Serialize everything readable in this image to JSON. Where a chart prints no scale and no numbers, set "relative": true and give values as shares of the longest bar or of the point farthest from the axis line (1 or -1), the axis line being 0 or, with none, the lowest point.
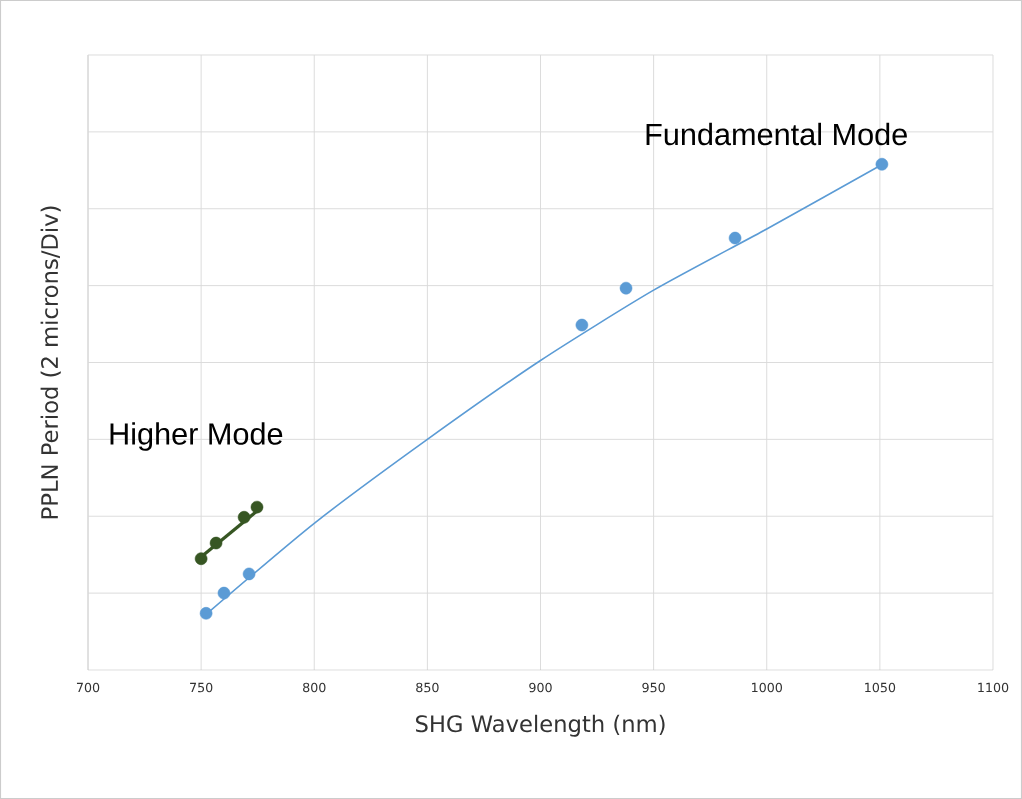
{
  "chart_data": {
    "type": "scatter",
    "relative": true,
    "xlabel": "SHG Wavelength  (nm)",
    "ylabel": "PPLN Period  (2 microns/Div)",
    "xlim": [
      700,
      1100
    ],
    "xticks": [
      700,
      750,
      800,
      850,
      900,
      950,
      1000,
      1050,
      1100
    ],
    "grid": true,
    "tick_labels": "x",
    "series": [
      {
        "name": "Fundamental Mode",
        "color": "#5b9bd5",
        "x": [
          752.2,
          760.1,
          771.2,
          918.3,
          937.8,
          986.0,
          1050.9
        ],
        "values": [
          0.112,
          0.152,
          0.19,
          0.682,
          0.755,
          0.854,
          1.0
        ]
      },
      {
        "name": "Higher Mode",
        "color": "#375623",
        "x": [
          750.0,
          756.6,
          769.0,
          774.7
        ],
        "values": [
          0.22,
          0.251,
          0.302,
          0.322
        ]
      },
      {
        "type": "line",
        "color": "#5b9bd5",
        "x": [
          752.2,
          800,
          850,
          900,
          950,
          1000,
          1050
        ],
        "values": [
          0.11,
          0.29,
          0.456,
          0.612,
          0.751,
          0.872,
          0.997
        ]
      },
      {
        "type": "line",
        "color": "#375623",
        "x": [
          748.2,
          776.0
        ],
        "values": [
          0.217,
          0.319
        ]
      }
    ]
  }
}
